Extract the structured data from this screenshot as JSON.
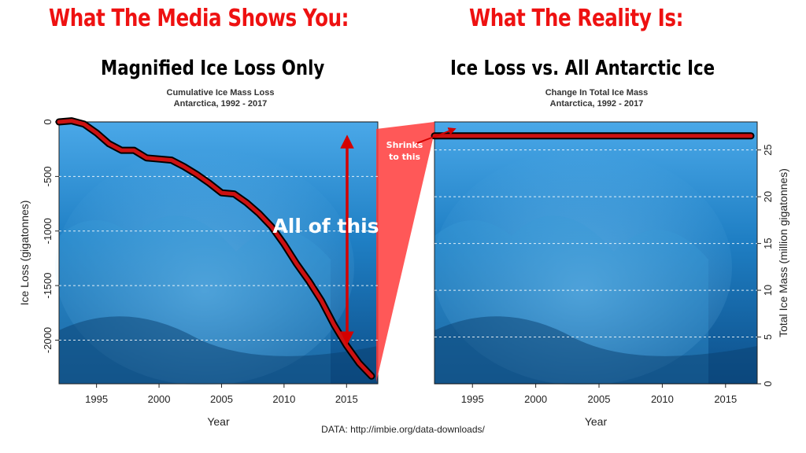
{
  "header": {
    "left_headline": "What The Media Shows You:",
    "right_headline": "What The Reality Is:",
    "left_subhead": "Magnified Ice Loss Only",
    "right_subhead": "Ice Loss vs. All Antarctic Ice"
  },
  "annotations": {
    "all_of_this": "All of this",
    "shrinks_line1": "Shrinks",
    "shrinks_line2": "to this"
  },
  "source": "DATA: http://imbie.org/data-downloads/",
  "colors": {
    "headline": "#ee1111",
    "line": "#cc1111",
    "line_outline": "#000000",
    "background_ice": "#1f7fc4",
    "funnel": "#ff3b3b"
  },
  "chart_data": [
    {
      "type": "line",
      "title": "Cumulative Ice Mass Loss",
      "subtitle": "Antarctica, 1992 - 2017",
      "xlabel": "Year",
      "ylabel": "Ice Loss (gigatonnes)",
      "xlim": [
        1992,
        2017.5
      ],
      "ylim": [
        -2400,
        0
      ],
      "xticks": [
        "1995",
        "2000",
        "2005",
        "2010",
        "2015"
      ],
      "yticks": [
        "0",
        "-500",
        "-1000",
        "-1500",
        "-2000"
      ],
      "grid": "horizontal-dashed",
      "x": [
        1992,
        1993,
        1994,
        1995,
        1996,
        1997,
        1998,
        1999,
        2000,
        2001,
        2002,
        2003,
        2004,
        2005,
        2006,
        2007,
        2008,
        2009,
        2010,
        2011,
        2012,
        2013,
        2014,
        2015,
        2016,
        2017
      ],
      "values": [
        0,
        10,
        -20,
        -100,
        -200,
        -260,
        -260,
        -330,
        -340,
        -350,
        -410,
        -480,
        -560,
        -650,
        -660,
        -740,
        -840,
        -960,
        -1120,
        -1300,
        -1460,
        -1640,
        -1860,
        -2050,
        -2210,
        -2330
      ]
    },
    {
      "type": "line",
      "title": "Change In Total Ice Mass",
      "subtitle": "Antarctica, 1992 - 2017",
      "xlabel": "Year",
      "ylabel": "Total Ice Mass (million gigatonnes)",
      "xlim": [
        1992,
        2017.5
      ],
      "ylim": [
        0,
        28
      ],
      "xticks": [
        "1995",
        "2000",
        "2005",
        "2010",
        "2015"
      ],
      "yticks": [
        "0",
        "5",
        "10",
        "15",
        "20",
        "25"
      ],
      "grid": "horizontal-dashed",
      "x": [
        1992,
        2017
      ],
      "values": [
        26.5,
        26.5
      ]
    }
  ]
}
